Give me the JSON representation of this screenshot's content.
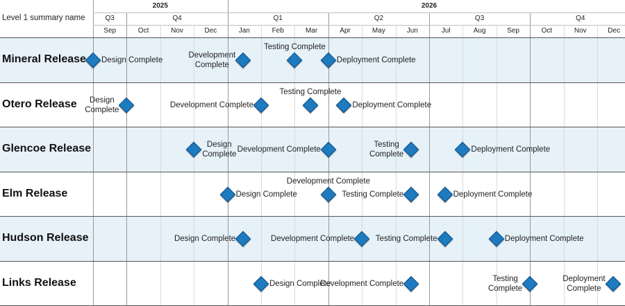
{
  "header": {
    "corner_label": "Level 1 summary name",
    "years": [
      "2025",
      "2026"
    ],
    "quarters": [
      "Q3",
      "Q4",
      "Q1",
      "Q2",
      "Q3",
      "Q4"
    ],
    "months": [
      "Sep",
      "Oct",
      "Nov",
      "Dec",
      "Jan",
      "Feb",
      "Mar",
      "Apr",
      "May",
      "Jun",
      "Jul",
      "Aug",
      "Sep",
      "Oct",
      "Nov",
      "Dec"
    ]
  },
  "colors": {
    "milestone": "#1f7bbf",
    "band": "#e6f1f8"
  },
  "rows": [
    {
      "name": "Mineral Release",
      "milestones": [
        {
          "label": "Design Complete",
          "date": "2025-09-01"
        },
        {
          "label": "Development Complete",
          "date": "2026-01-15"
        },
        {
          "label": "Testing Complete",
          "date": "2026-03-01"
        },
        {
          "label": "Deployment Complete",
          "date": "2026-04-01"
        }
      ]
    },
    {
      "name": "Otero Release",
      "milestones": [
        {
          "label": "Design Complete",
          "date": "2025-10-01"
        },
        {
          "label": "Development Complete",
          "date": "2026-02-01"
        },
        {
          "label": "Testing Complete",
          "date": "2026-03-15"
        },
        {
          "label": "Deployment Complete",
          "date": "2026-04-15"
        }
      ]
    },
    {
      "name": "Glencoe Release",
      "milestones": [
        {
          "label": "Design Complete",
          "date": "2025-12-01"
        },
        {
          "label": "Development Complete",
          "date": "2026-04-01"
        },
        {
          "label": "Testing Complete",
          "date": "2026-06-15"
        },
        {
          "label": "Deployment Complete",
          "date": "2026-08-01"
        }
      ]
    },
    {
      "name": "Elm Release",
      "milestones": [
        {
          "label": "Design Complete",
          "date": "2026-01-01"
        },
        {
          "label": "Development Complete",
          "date": "2026-04-01"
        },
        {
          "label": "Testing Complete",
          "date": "2026-06-15"
        },
        {
          "label": "Deployment Complete",
          "date": "2026-07-15"
        }
      ]
    },
    {
      "name": "Hudson Release",
      "milestones": [
        {
          "label": "Design Complete",
          "date": "2026-01-15"
        },
        {
          "label": "Development Complete",
          "date": "2026-05-01"
        },
        {
          "label": "Testing Complete",
          "date": "2026-07-15"
        },
        {
          "label": "Deployment Complete",
          "date": "2026-09-01"
        }
      ]
    },
    {
      "name": "Links Release",
      "milestones": [
        {
          "label": "Design Complete",
          "date": "2026-02-01"
        },
        {
          "label": "Development Complete",
          "date": "2026-06-15"
        },
        {
          "label": "Testing Complete",
          "date": "2026-10-01"
        },
        {
          "label": "Deployment Complete",
          "date": "2026-12-15"
        }
      ]
    }
  ]
}
